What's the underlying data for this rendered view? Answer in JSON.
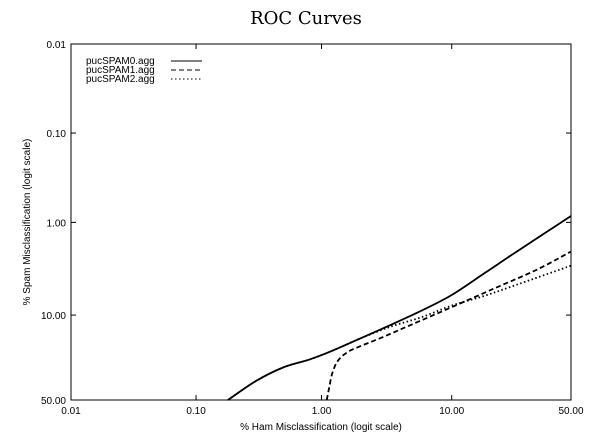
{
  "chart_data": {
    "type": "line",
    "title": "ROC Curves",
    "xlabel": "% Ham Misclassification (logit scale)",
    "ylabel": "% Spam Misclassification (logit scale)",
    "x_scale": "logit",
    "y_scale": "logit",
    "y_inverted": true,
    "xlim": [
      0.01,
      50.0
    ],
    "ylim": [
      0.01,
      50.0
    ],
    "x_ticks": [
      0.01,
      0.1,
      1.0,
      10.0,
      50.0
    ],
    "x_tick_labels": [
      "0.01",
      "0.10",
      "1.00",
      "10.00",
      "50.00"
    ],
    "y_ticks": [
      0.01,
      0.1,
      1.0,
      10.0,
      50.0
    ],
    "y_tick_labels": [
      "0.01",
      "0.10",
      "1.00",
      "10.00",
      "50.00"
    ],
    "grid": false,
    "legend_position": "top-left",
    "series": [
      {
        "name": "pucSPAM0.agg",
        "line_style": "solid",
        "x": [
          0.18,
          0.3,
          0.5,
          0.8,
          1.2,
          2.0,
          3.5,
          6.0,
          10.0,
          17.0,
          28.0,
          50.0
        ],
        "y": [
          50.0,
          38.0,
          30.0,
          26.0,
          22.0,
          17.0,
          12.5,
          9.0,
          6.2,
          3.6,
          2.0,
          0.85
        ]
      },
      {
        "name": "pucSPAM1.agg",
        "line_style": "dashed",
        "x": [
          1.1,
          1.15,
          1.22,
          1.35,
          1.6,
          2.0,
          3.0,
          5.0,
          10.0,
          20.0,
          35.0,
          50.0
        ],
        "y": [
          50.0,
          42.0,
          33.0,
          26.5,
          22.5,
          20.0,
          16.5,
          12.5,
          8.3,
          5.2,
          3.3,
          2.1
        ]
      },
      {
        "name": "pucSPAM2.agg",
        "line_style": "dotted",
        "x": [
          0.18,
          0.3,
          0.5,
          0.8,
          1.2,
          2.0,
          3.5,
          6.0,
          10.0,
          17.0,
          28.0,
          50.0
        ],
        "y": [
          50.0,
          38.0,
          30.0,
          26.0,
          22.0,
          17.0,
          13.0,
          10.5,
          8.0,
          6.3,
          4.7,
          3.0
        ]
      }
    ]
  }
}
